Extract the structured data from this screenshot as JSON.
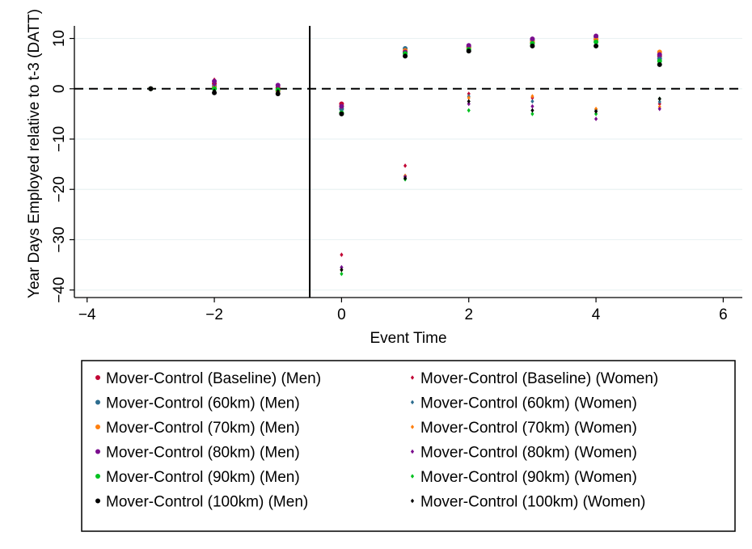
{
  "chart_data": {
    "type": "scatter",
    "title": "",
    "xlabel": "Event Time",
    "ylabel": "Year Days Employed relative to t-3 (DATT)",
    "xlim": [
      -4.2,
      6.3
    ],
    "ylim": [
      -41.5,
      12.5
    ],
    "xticks": [
      -4,
      -2,
      0,
      2,
      4,
      6
    ],
    "yticks": [
      10,
      0,
      -10,
      -20,
      -30,
      -40
    ],
    "grid": true,
    "reference_lines": {
      "horizontal_dashed_at": 0,
      "vertical_solid_at": -0.5
    },
    "legend_position": "bottom",
    "x": [
      -3,
      -2,
      -1,
      0,
      1,
      2,
      3,
      4,
      5
    ],
    "series": [
      {
        "name": "Mover-Control (Baseline) (Men)",
        "marker": "circle",
        "color": "#c10534",
        "values": [
          0,
          1.0,
          0.2,
          -3.0,
          7.3,
          8.3,
          9.2,
          9.8,
          6.5
        ]
      },
      {
        "name": "Mover-Control (Baseline) (Women)",
        "marker": "diamond",
        "color": "#c10534",
        "values": [
          0,
          1.8,
          0.4,
          -33.0,
          -15.3,
          -1.0,
          -1.8,
          -4.5,
          -3.0
        ]
      },
      {
        "name": "Mover-Control (60km) (Men)",
        "marker": "circle",
        "color": "#2d6d8f",
        "values": [
          0,
          0.5,
          -0.5,
          -4.0,
          8.0,
          8.3,
          9.6,
          10.3,
          6.0
        ]
      },
      {
        "name": "Mover-Control (60km) (Women)",
        "marker": "diamond",
        "color": "#2d6d8f",
        "values": [
          0,
          0.6,
          -0.3,
          -35.5,
          -17.3,
          -1.5,
          -2.5,
          -4.2,
          -2.6
        ]
      },
      {
        "name": "Mover-Control (70km) (Men)",
        "marker": "circle",
        "color": "#ff7f0e",
        "values": [
          0,
          0.2,
          -0.4,
          -3.5,
          7.6,
          8.1,
          9.3,
          9.8,
          7.3
        ]
      },
      {
        "name": "Mover-Control (70km) (Women)",
        "marker": "diamond",
        "color": "#ff7f0e",
        "values": [
          0,
          0.2,
          -0.2,
          -36.0,
          -17.3,
          -1.8,
          -1.5,
          -4.0,
          -3.6
        ]
      },
      {
        "name": "Mover-Control (80km) (Men)",
        "marker": "circle",
        "color": "#7b0e8e",
        "values": [
          0,
          1.5,
          0.7,
          -3.5,
          7.3,
          8.6,
          9.9,
          10.5,
          6.8
        ]
      },
      {
        "name": "Mover-Control (80km) (Women)",
        "marker": "diamond",
        "color": "#7b0e8e",
        "values": [
          0,
          0.8,
          0.2,
          -35.5,
          -17.5,
          -3.0,
          -3.5,
          -6.0,
          -4.0
        ]
      },
      {
        "name": "Mover-Control (90km) (Men)",
        "marker": "circle",
        "color": "#00c11f",
        "values": [
          0,
          0.0,
          -0.2,
          -4.8,
          7.0,
          7.8,
          9.0,
          9.3,
          5.5
        ]
      },
      {
        "name": "Mover-Control (90km) (Women)",
        "marker": "diamond",
        "color": "#00c11f",
        "values": [
          0,
          -0.3,
          -0.4,
          -36.8,
          -18.0,
          -4.3,
          -5.0,
          -5.0,
          -2.0
        ]
      },
      {
        "name": "Mover-Control (100km) (Men)",
        "marker": "circle",
        "color": "#000000",
        "values": [
          0,
          -0.8,
          -1.0,
          -5.0,
          6.5,
          7.5,
          8.5,
          8.5,
          4.8
        ]
      },
      {
        "name": "Mover-Control (100km) (Women)",
        "marker": "diamond",
        "color": "#000000",
        "values": [
          0,
          -0.4,
          -0.5,
          -36.0,
          -17.8,
          -2.5,
          -4.3,
          -4.5,
          -2.0
        ]
      }
    ]
  }
}
